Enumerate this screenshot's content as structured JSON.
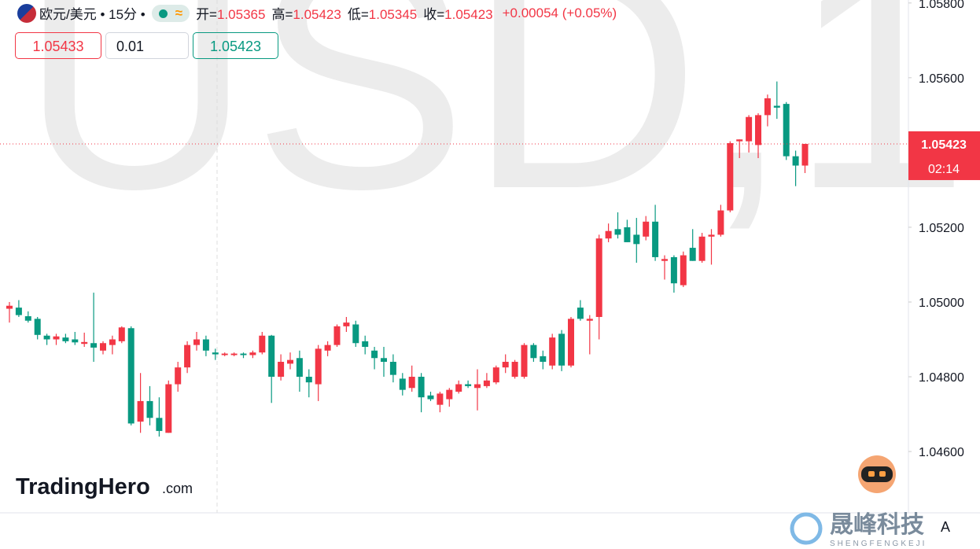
{
  "header": {
    "symbol": "欧元/美元 • 15分 •",
    "ohlc": [
      {
        "label": "开=",
        "value": "1.05365"
      },
      {
        "label": "高=",
        "value": "1.05423"
      },
      {
        "label": "低=",
        "value": "1.05345"
      },
      {
        "label": "收=",
        "value": "1.05423"
      }
    ],
    "change": "+0.00054 (+0.05%)"
  },
  "buttons": {
    "left": "1.05433",
    "middle": "0.01",
    "right": "1.05423"
  },
  "chart_data": {
    "type": "candlestick",
    "watermark": "USD,1",
    "up_color": "#f23645",
    "down_color": "#089981",
    "ylim": [
      1.04436,
      1.05808
    ],
    "yticks": [
      {
        "value": 1.046,
        "label": "1.04600"
      },
      {
        "value": 1.048,
        "label": "1.04800"
      },
      {
        "value": 1.05,
        "label": "1.05000"
      },
      {
        "value": 1.052,
        "label": "1.05200"
      },
      {
        "value": 1.056,
        "label": "1.05600"
      },
      {
        "value": 1.058,
        "label": "1.05800"
      }
    ],
    "open": [
      1.04982,
      1.04985,
      1.04962,
      1.04955,
      1.0491,
      1.049,
      1.04905,
      1.049,
      1.04888,
      1.0489,
      1.0487,
      1.04885,
      1.04895,
      1.0493,
      1.0468,
      1.04735,
      1.0469,
      1.0465,
      1.0478,
      1.04825,
      1.04885,
      1.049,
      1.04865,
      1.04858,
      1.04858,
      1.04862,
      1.04858,
      1.04865,
      1.0491,
      1.048,
      1.04835,
      1.0485,
      1.048,
      1.0478,
      1.0487,
      1.04885,
      1.04935,
      1.0494,
      1.04895,
      1.0487,
      1.0485,
      1.0484,
      1.04795,
      1.0477,
      1.048,
      1.0475,
      1.04725,
      1.0474,
      1.0476,
      1.0478,
      1.0477,
      1.04775,
      1.04785,
      1.04825,
      1.048,
      1.048,
      1.04885,
      1.04855,
      1.0483,
      1.04915,
      1.0483,
      1.04985,
      1.0495,
      1.0496,
      1.0517,
      1.05195,
      1.052,
      1.0518,
      1.05175,
      1.05215,
      1.0511,
      1.0512,
      1.05045,
      1.05145,
      1.0511,
      1.05175,
      1.0518,
      1.05245,
      1.0543,
      1.0543,
      1.0542,
      1.055,
      1.05525,
      1.0553,
      1.0539,
      1.05365
    ],
    "high": [
      1.05,
      1.05005,
      1.04975,
      1.0496,
      1.04915,
      1.04915,
      1.04915,
      1.0492,
      1.04918,
      1.05025,
      1.04895,
      1.0491,
      1.04935,
      1.04935,
      1.0481,
      1.04775,
      1.04745,
      1.0479,
      1.0484,
      1.04895,
      1.0492,
      1.0491,
      1.04875,
      1.04865,
      1.04865,
      1.04865,
      1.0487,
      1.0492,
      1.04912,
      1.0486,
      1.04865,
      1.0487,
      1.0482,
      1.04885,
      1.04895,
      1.0494,
      1.0496,
      1.0495,
      1.0491,
      1.0488,
      1.0488,
      1.0486,
      1.0481,
      1.0483,
      1.0481,
      1.0476,
      1.0476,
      1.0477,
      1.0479,
      1.0479,
      1.0482,
      1.0481,
      1.0483,
      1.0486,
      1.04845,
      1.0489,
      1.0489,
      1.0487,
      1.04915,
      1.04925,
      1.0496,
      1.05005,
      1.04965,
      1.0518,
      1.0521,
      1.0524,
      1.0522,
      1.05225,
      1.0523,
      1.0526,
      1.05125,
      1.05125,
      1.05135,
      1.05195,
      1.05185,
      1.05195,
      1.0526,
      1.0543,
      1.05435,
      1.055,
      1.05505,
      1.05555,
      1.0559,
      1.05535,
      1.05405,
      1.05423
    ],
    "low": [
      1.04945,
      1.0496,
      1.04945,
      1.049,
      1.04885,
      1.04885,
      1.0489,
      1.04885,
      1.0488,
      1.0484,
      1.0486,
      1.0486,
      1.0489,
      1.0467,
      1.0465,
      1.0467,
      1.0464,
      1.0465,
      1.0476,
      1.0481,
      1.0487,
      1.04855,
      1.04845,
      1.04855,
      1.04855,
      1.0485,
      1.0485,
      1.0486,
      1.0473,
      1.0479,
      1.0482,
      1.0476,
      1.04745,
      1.04735,
      1.04855,
      1.0488,
      1.0492,
      1.0488,
      1.0486,
      1.0482,
      1.048,
      1.04785,
      1.0475,
      1.0476,
      1.04705,
      1.04735,
      1.04705,
      1.0472,
      1.04755,
      1.0477,
      1.0471,
      1.0477,
      1.0478,
      1.0481,
      1.04795,
      1.04795,
      1.0484,
      1.0482,
      1.0482,
      1.04815,
      1.04825,
      1.0495,
      1.0486,
      1.049,
      1.0516,
      1.0517,
      1.0516,
      1.05105,
      1.05165,
      1.0511,
      1.0506,
      1.05025,
      1.0504,
      1.0511,
      1.05105,
      1.051,
      1.05175,
      1.0524,
      1.05385,
      1.054,
      1.05385,
      1.0547,
      1.0549,
      1.0538,
      1.0531,
      1.05345
    ],
    "close": [
      1.0499,
      1.04965,
      1.0495,
      1.04912,
      1.049,
      1.04908,
      1.04895,
      1.04892,
      1.04893,
      1.04878,
      1.0489,
      1.049,
      1.04932,
      1.04675,
      1.04735,
      1.0469,
      1.04655,
      1.0478,
      1.04825,
      1.04885,
      1.049,
      1.0487,
      1.0486,
      1.04862,
      1.04862,
      1.04858,
      1.04865,
      1.0491,
      1.048,
      1.0484,
      1.04845,
      1.048,
      1.04785,
      1.04875,
      1.04885,
      1.04935,
      1.04945,
      1.0489,
      1.0488,
      1.0485,
      1.0484,
      1.04805,
      1.04765,
      1.048,
      1.04745,
      1.0474,
      1.04755,
      1.04765,
      1.0478,
      1.04775,
      1.0478,
      1.0479,
      1.04825,
      1.0484,
      1.0484,
      1.04885,
      1.0485,
      1.0484,
      1.04905,
      1.0483,
      1.04955,
      1.04955,
      1.04955,
      1.0517,
      1.0519,
      1.0518,
      1.0516,
      1.05155,
      1.05215,
      1.0512,
      1.05115,
      1.0505,
      1.05125,
      1.0511,
      1.05175,
      1.0518,
      1.05245,
      1.05425,
      1.05435,
      1.05495,
      1.055,
      1.05545,
      1.0552,
      1.0539,
      1.05365,
      1.05423
    ],
    "last_price_label": "1.05423",
    "countdown": "02:14"
  },
  "branding": {
    "logo": "TradingHero",
    "logo_suffix": ".com",
    "company": "晟峰科技",
    "company_latin": "SHENGFENGKEJI",
    "badge": "A"
  }
}
